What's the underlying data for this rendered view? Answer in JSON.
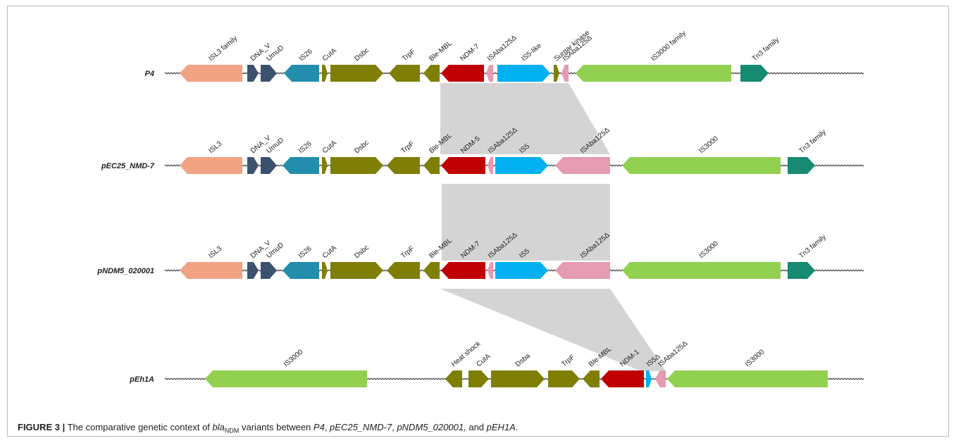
{
  "colors": {
    "salmon": "#F2A384",
    "navy": "#3C5170",
    "teal": "#238EAC",
    "olive": "#7F7F05",
    "red": "#C00000",
    "pink": "#E59BB0",
    "cyan": "#00B0F0",
    "lime": "#92D050",
    "green": "#178A72",
    "shade": "#D4D4D4",
    "backbone": "#444444"
  },
  "tracks": [
    {
      "name": "P4",
      "genes": [
        {
          "label": "ISL3 family",
          "color": "salmon",
          "dir": "L",
          "start": 254,
          "end": 343
        },
        {
          "label": "DNA_V",
          "color": "navy",
          "dir": "R",
          "start": 350,
          "end": 366
        },
        {
          "label": "UmuD",
          "color": "navy",
          "dir": "R",
          "start": 369,
          "end": 392
        },
        {
          "label": "IS26",
          "color": "teal",
          "dir": "L",
          "start": 402,
          "end": 452
        },
        {
          "label": "CutA",
          "color": "olive",
          "dir": "R",
          "start": 456,
          "end": 464
        },
        {
          "label": "Dsbc",
          "color": "olive",
          "dir": "R",
          "start": 468,
          "end": 543
        },
        {
          "label": "TrpF",
          "color": "olive",
          "dir": "L",
          "start": 551,
          "end": 595
        },
        {
          "label": "Ble-MBL",
          "color": "olive",
          "dir": "L",
          "start": 600,
          "end": 623
        },
        {
          "label": "NDM-7",
          "color": "red",
          "dir": "L",
          "start": 625,
          "end": 686
        },
        {
          "label": "ISAba125Δ",
          "color": "pink",
          "dir": "L",
          "start": 689,
          "end": 699
        },
        {
          "label": "IS5-like",
          "color": "cyan",
          "dir": "R",
          "start": 705,
          "end": 780
        },
        {
          "label": "Surgar kinase",
          "color": "olive",
          "dir": "R",
          "start": 785,
          "end": 793
        },
        {
          "label": "ISAba125Δ",
          "color": "pink",
          "dir": "L",
          "start": 796,
          "end": 806
        },
        {
          "label": "IS3000 family",
          "color": "lime",
          "dir": "L",
          "start": 816,
          "end": 1037
        },
        {
          "label": "Tn3 family",
          "color": "green",
          "dir": "R",
          "start": 1050,
          "end": 1090
        }
      ]
    },
    {
      "name": "pEC25_NMD-7",
      "genes": [
        {
          "label": "ISL3",
          "color": "salmon",
          "dir": "L",
          "start": 254,
          "end": 343
        },
        {
          "label": "DNA_V",
          "color": "navy",
          "dir": "R",
          "start": 350,
          "end": 366
        },
        {
          "label": "UmuD",
          "color": "navy",
          "dir": "R",
          "start": 369,
          "end": 392
        },
        {
          "label": "IS26",
          "color": "teal",
          "dir": "L",
          "start": 400,
          "end": 452
        },
        {
          "label": "CutA",
          "color": "olive",
          "dir": "R",
          "start": 456,
          "end": 464
        },
        {
          "label": "Dsbc",
          "color": "olive",
          "dir": "R",
          "start": 468,
          "end": 543
        },
        {
          "label": "TrpF",
          "color": "olive",
          "dir": "L",
          "start": 548,
          "end": 595
        },
        {
          "label": "Ble-MBL",
          "color": "olive",
          "dir": "L",
          "start": 600,
          "end": 623
        },
        {
          "label": "NDM-5",
          "color": "red",
          "dir": "L",
          "start": 625,
          "end": 688
        },
        {
          "label": "ISAba125Δ",
          "color": "pink",
          "dir": "L",
          "start": 691,
          "end": 699
        },
        {
          "label": "IS5",
          "color": "cyan",
          "dir": "R",
          "start": 702,
          "end": 777
        },
        {
          "label": "ISAba125Δ",
          "color": "pink",
          "dir": "L",
          "start": 787,
          "end": 865
        },
        {
          "label": "IS3000",
          "color": "lime",
          "dir": "L",
          "start": 882,
          "end": 1107
        },
        {
          "label": "Tn3 family",
          "color": "green",
          "dir": "R",
          "start": 1117,
          "end": 1156
        }
      ]
    },
    {
      "name": "pNDM5_020001",
      "genes": [
        {
          "label": "ISL3",
          "color": "salmon",
          "dir": "L",
          "start": 254,
          "end": 343
        },
        {
          "label": "DNA_V",
          "color": "navy",
          "dir": "R",
          "start": 350,
          "end": 366
        },
        {
          "label": "UmuD",
          "color": "navy",
          "dir": "R",
          "start": 369,
          "end": 392
        },
        {
          "label": "IS26",
          "color": "teal",
          "dir": "L",
          "start": 400,
          "end": 452
        },
        {
          "label": "CutA",
          "color": "olive",
          "dir": "R",
          "start": 456,
          "end": 464
        },
        {
          "label": "Dsbc",
          "color": "olive",
          "dir": "R",
          "start": 468,
          "end": 543
        },
        {
          "label": "TrpF",
          "color": "olive",
          "dir": "L",
          "start": 548,
          "end": 595
        },
        {
          "label": "Ble-MBL",
          "color": "olive",
          "dir": "L",
          "start": 600,
          "end": 623
        },
        {
          "label": "NDM-7",
          "color": "red",
          "dir": "L",
          "start": 625,
          "end": 688
        },
        {
          "label": "ISAba125Δ",
          "color": "pink",
          "dir": "L",
          "start": 691,
          "end": 699
        },
        {
          "label": "IS5",
          "color": "cyan",
          "dir": "R",
          "start": 702,
          "end": 777
        },
        {
          "label": "ISAba125Δ",
          "color": "pink",
          "dir": "L",
          "start": 787,
          "end": 865
        },
        {
          "label": "IS3000",
          "color": "lime",
          "dir": "L",
          "start": 882,
          "end": 1107
        },
        {
          "label": "Tn3 family",
          "color": "green",
          "dir": "R",
          "start": 1117,
          "end": 1156
        }
      ]
    },
    {
      "name": "pEh1A",
      "genes": [
        {
          "label": "IS3000",
          "color": "lime",
          "dir": "L",
          "start": 290,
          "end": 520
        },
        {
          "label": "Heat shock",
          "color": "olive",
          "dir": "L",
          "start": 631,
          "end": 655
        },
        {
          "label": "CutA",
          "color": "olive",
          "dir": "R",
          "start": 664,
          "end": 693
        },
        {
          "label": "Dsba",
          "color": "olive",
          "dir": "R",
          "start": 696,
          "end": 772
        },
        {
          "label": "TrpF",
          "color": "olive",
          "dir": "R",
          "start": 777,
          "end": 822
        },
        {
          "label": "Ble-MBL",
          "color": "olive",
          "dir": "L",
          "start": 826,
          "end": 850
        },
        {
          "label": "NDM-1",
          "color": "red",
          "dir": "L",
          "start": 852,
          "end": 913
        },
        {
          "label": "IS5Δ",
          "color": "cyan",
          "dir": "R",
          "start": 916,
          "end": 924
        },
        {
          "label": "ISAba125Δ",
          "color": "pink",
          "dir": "L",
          "start": 929,
          "end": 944
        },
        {
          "label": "IS3000",
          "color": "lime",
          "dir": "L",
          "start": 946,
          "end": 1174
        }
      ]
    }
  ],
  "caption": {
    "fig_label": "FIGURE 3 |",
    "text_1": " The comparative genetic context of ",
    "bla": "bla",
    "sub": "NDM",
    "text_2": " variants between ",
    "p4": "P4",
    "sep_1": ", ",
    "pec": "pEC25_NMD-7",
    "sep_2": ", ",
    "pndm": "pNDM5_020001,",
    "and": " and ",
    "peh": "pEH1A",
    "end": "."
  }
}
